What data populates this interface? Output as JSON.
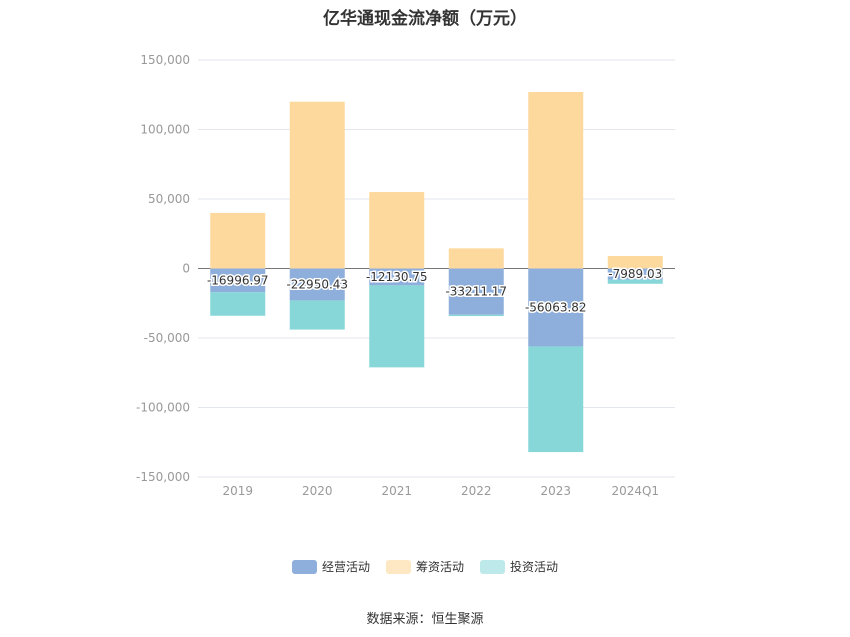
{
  "chart_data": {
    "type": "bar",
    "stacked": true,
    "title": "亿华通现金流净额（万元）",
    "source": "数据来源：恒生聚源",
    "categories": [
      "2019",
      "2020",
      "2021",
      "2022",
      "2023",
      "2024Q1"
    ],
    "ylim": [
      -150000,
      150000
    ],
    "yticks": [
      150000,
      100000,
      50000,
      0,
      -50000,
      -100000,
      -150000
    ],
    "ytick_labels": [
      "150,000",
      "100,000",
      "50,000",
      "0",
      "-50,000",
      "-100,000",
      "-150,000"
    ],
    "grid": true,
    "legend_position": "bottom",
    "series": [
      {
        "name": "经营活动",
        "color": "#8eaedb",
        "values": [
          -16996.97,
          -22950.43,
          -12130.75,
          -33211.17,
          -56063.82,
          -7989.03
        ],
        "labels": [
          "-16996.97",
          "-22950.43",
          "-12130.75",
          "-33211.17",
          "-56063.82",
          "-7989.03"
        ]
      },
      {
        "name": "筹资活动",
        "color": "#fed99e",
        "values": [
          40000,
          120000,
          55000,
          14500,
          127000,
          9000
        ]
      },
      {
        "name": "投资活动",
        "color": "#87d6d8",
        "values": [
          -17000,
          -21000,
          -59000,
          -1000,
          -76000,
          -3000
        ]
      }
    ]
  }
}
